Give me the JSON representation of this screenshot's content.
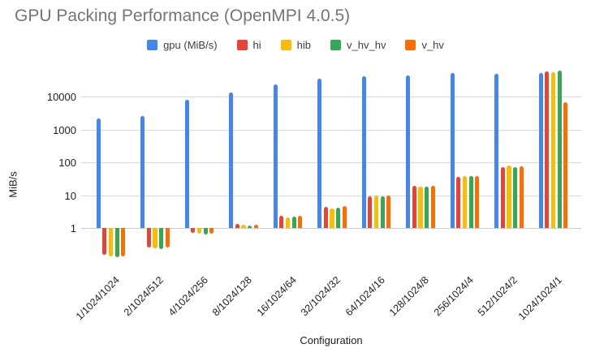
{
  "title": "GPU Packing Performance (OpenMPI 4.0.5)",
  "legend": {
    "items": [
      {
        "label": "gpu (MiB/s)",
        "color": "#4285F4"
      },
      {
        "label": "hi",
        "color": "#EA4335"
      },
      {
        "label": "hib",
        "color": "#FBBC04"
      },
      {
        "label": "v_hv_hv",
        "color": "#34A853"
      },
      {
        "label": "v_hv",
        "color": "#FF6D00"
      }
    ]
  },
  "chart_data": {
    "type": "bar",
    "title": "GPU Packing Performance (OpenMPI 4.0.5)",
    "xlabel": "Configuration",
    "ylabel": "MiB/s",
    "y_scale": "log",
    "y_ticks": [
      1,
      10,
      100,
      1000,
      10000
    ],
    "ylim": [
      0.1,
      70000
    ],
    "grid": true,
    "legend_position": "top",
    "categories": [
      "1/1024/1024",
      "2/1024/512",
      "4/1024/256",
      "8/1024/128",
      "16/1024/64",
      "32/1024/32",
      "64/1024/16",
      "128/1024/8",
      "256/1024/4",
      "512/1024/2",
      "1024/1024/1"
    ],
    "series": [
      {
        "name": "gpu (MiB/s)",
        "color": "#4285F4",
        "values": [
          2100,
          2600,
          8000,
          13000,
          24000,
          34000,
          42000,
          45000,
          52000,
          48000,
          53000
        ]
      },
      {
        "name": "hi",
        "color": "#EA4335",
        "values": [
          0.15,
          0.25,
          0.7,
          1.3,
          2.3,
          4.4,
          9.2,
          19.5,
          36,
          72,
          58000
        ]
      },
      {
        "name": "hib",
        "color": "#FBBC04",
        "values": [
          0.14,
          0.24,
          0.68,
          1.25,
          2.15,
          4.0,
          9.5,
          18.5,
          38,
          78,
          55000
        ]
      },
      {
        "name": "v_hv_hv",
        "color": "#34A853",
        "values": [
          0.13,
          0.23,
          0.65,
          1.2,
          2.2,
          4.1,
          9.0,
          17.7,
          38,
          71,
          60000
        ]
      },
      {
        "name": "v_hv",
        "color": "#FF6D00",
        "values": [
          0.14,
          0.25,
          0.68,
          1.25,
          2.3,
          4.6,
          9.5,
          18.7,
          37,
          75,
          6800
        ]
      }
    ]
  }
}
